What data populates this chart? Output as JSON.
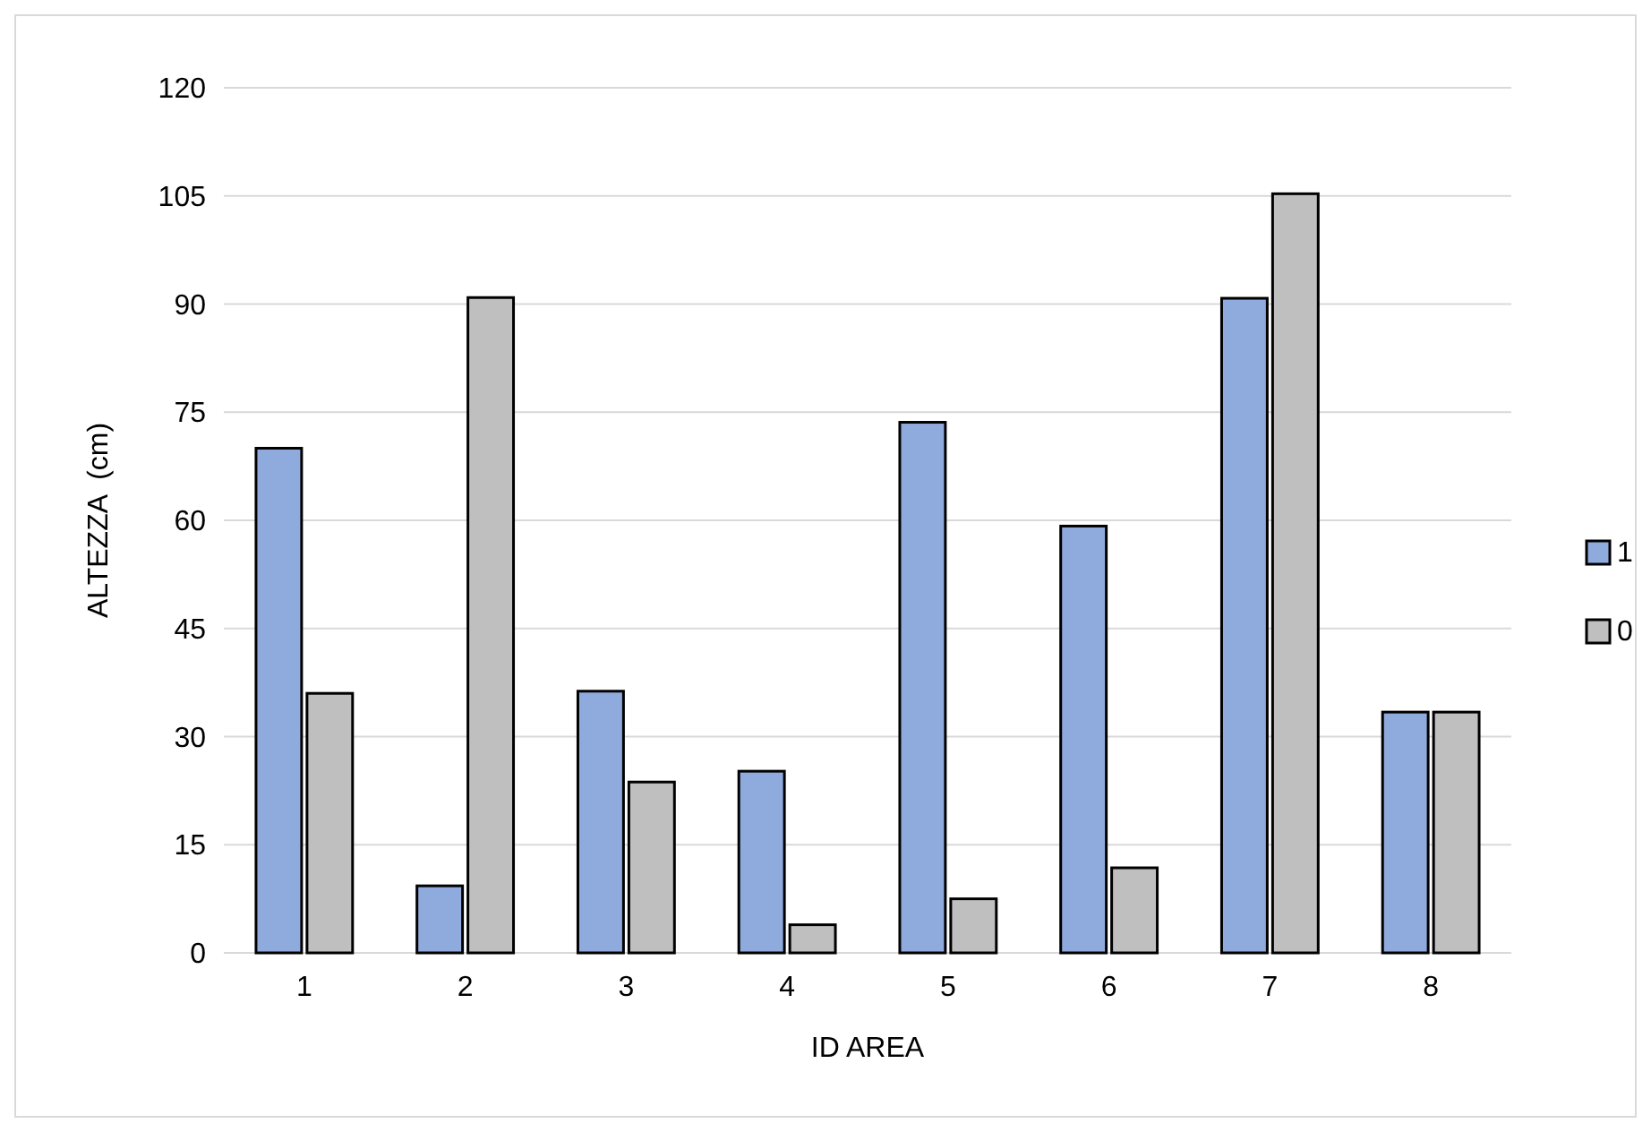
{
  "chart_data": {
    "type": "bar",
    "xlabel": "ID AREA",
    "ylabel": "ALTEZZA  (cm)",
    "categories": [
      "1",
      "2",
      "3",
      "4",
      "5",
      "6",
      "7",
      "8"
    ],
    "series": [
      {
        "name": "1",
        "color": "#8faadc",
        "values": [
          70,
          9.3,
          36.3,
          25.2,
          73.6,
          59.2,
          90.8,
          33.4
        ]
      },
      {
        "name": "0",
        "color": "#bfbfbf",
        "values": [
          36,
          90.9,
          23.7,
          3.9,
          7.5,
          11.8,
          105.3,
          33.4
        ]
      }
    ],
    "ylim": [
      0,
      120
    ],
    "yticks": [
      0,
      15,
      30,
      45,
      60,
      75,
      90,
      105,
      120
    ],
    "grid": "y",
    "legend": "right"
  }
}
